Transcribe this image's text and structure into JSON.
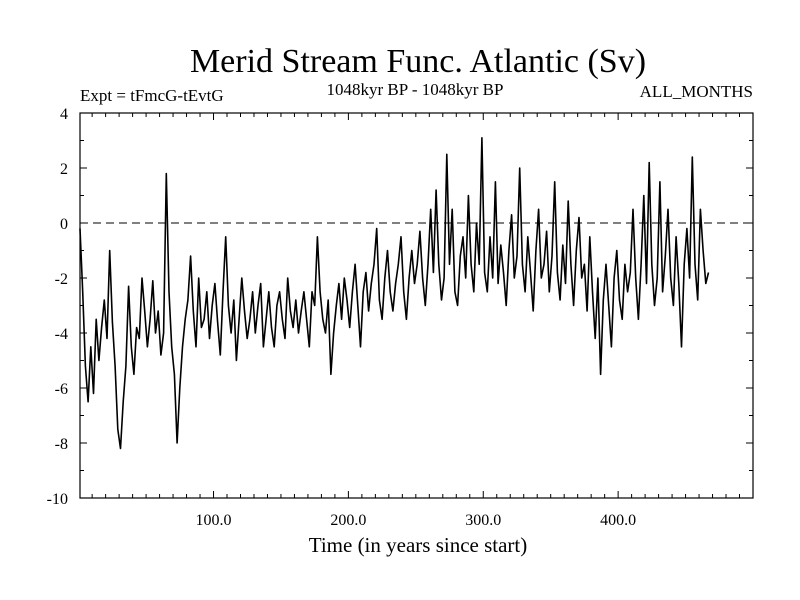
{
  "chart_data": {
    "type": "line",
    "title": "Merid Stream Func. Atlantic (Sv)",
    "subtitle_left": "Expt = tFmcG-tEvtG",
    "subtitle_center": "1048kyr BP - 1048kyr BP",
    "subtitle_right": "ALL_MONTHS",
    "xlabel": "Time (in years since start)",
    "ylabel": "",
    "xlim": [
      1,
      500
    ],
    "ylim": [
      -10,
      4
    ],
    "x_ticks": [
      100,
      200,
      300,
      400
    ],
    "x_tick_labels": [
      "100.0",
      "200.0",
      "300.0",
      "400.0"
    ],
    "y_ticks": [
      -10,
      -8,
      -6,
      -4,
      -2,
      0,
      2,
      4
    ],
    "y_tick_labels": [
      "-10",
      "-8",
      "-6",
      "-4",
      "-2",
      "0",
      "2",
      "4"
    ],
    "reference_line": 0,
    "grid": false,
    "series": [
      {
        "name": "Merid Stream Func. Atlantic",
        "x_start": 1,
        "x_step": 2,
        "values": [
          -0.2,
          -2.5,
          -5.2,
          -6.5,
          -4.5,
          -6.2,
          -3.5,
          -5.0,
          -3.8,
          -2.8,
          -4.2,
          -1.0,
          -3.6,
          -5.2,
          -7.5,
          -8.2,
          -6.5,
          -5.2,
          -2.3,
          -4.5,
          -5.5,
          -3.8,
          -4.2,
          -2.0,
          -3.2,
          -4.5,
          -3.5,
          -2.1,
          -4.0,
          -3.2,
          -4.8,
          -4.0,
          1.8,
          -2.5,
          -4.5,
          -5.5,
          -8.0,
          -6.0,
          -4.5,
          -3.5,
          -2.8,
          -1.2,
          -3.2,
          -4.5,
          -2.0,
          -3.8,
          -3.5,
          -2.5,
          -4.2,
          -3.0,
          -2.2,
          -3.6,
          -4.8,
          -2.5,
          -0.5,
          -3.0,
          -4.0,
          -2.8,
          -5.0,
          -3.5,
          -2.0,
          -3.2,
          -4.2,
          -3.5,
          -2.5,
          -4.0,
          -3.0,
          -2.2,
          -4.5,
          -3.5,
          -2.5,
          -3.8,
          -4.5,
          -3.0,
          -2.5,
          -3.5,
          -4.2,
          -2.0,
          -3.2,
          -3.8,
          -2.8,
          -4.0,
          -3.2,
          -2.5,
          -3.5,
          -4.5,
          -2.5,
          -3.0,
          -0.5,
          -2.5,
          -3.5,
          -4.0,
          -2.8,
          -5.5,
          -4.0,
          -3.0,
          -2.2,
          -3.5,
          -2.0,
          -2.8,
          -3.8,
          -2.5,
          -1.5,
          -3.0,
          -4.5,
          -2.5,
          -1.8,
          -3.2,
          -2.2,
          -1.5,
          -0.2,
          -2.8,
          -3.5,
          -2.0,
          -1.0,
          -2.5,
          -3.2,
          -2.2,
          -1.5,
          -0.5,
          -2.5,
          -3.5,
          -2.0,
          -1.0,
          -2.2,
          -1.5,
          -0.3,
          -2.0,
          -3.0,
          -1.5,
          0.5,
          -1.8,
          1.2,
          -1.5,
          -2.8,
          -2.0,
          2.5,
          -1.5,
          0.5,
          -2.5,
          -3.0,
          -1.2,
          -0.5,
          -2.0,
          1.0,
          -1.5,
          -2.5,
          0.0,
          -1.5,
          3.1,
          -1.8,
          -2.5,
          -0.5,
          -2.0,
          1.5,
          -2.2,
          -0.8,
          -1.8,
          -3.0,
          -1.0,
          0.3,
          -2.0,
          -1.2,
          2.0,
          -1.5,
          -2.5,
          -0.5,
          -1.8,
          -3.2,
          -1.0,
          0.5,
          -2.0,
          -1.5,
          -0.3,
          -2.5,
          -1.2,
          1.5,
          -1.8,
          -2.8,
          -0.8,
          -2.2,
          0.8,
          -1.5,
          -3.0,
          -1.0,
          0.2,
          -2.0,
          -1.5,
          -3.2,
          -0.5,
          -2.5,
          -4.2,
          -2.0,
          -5.5,
          -2.8,
          -1.5,
          -3.0,
          -4.5,
          -2.0,
          -1.0,
          -2.8,
          -3.5,
          -1.5,
          -2.5,
          -1.8,
          0.5,
          -2.0,
          -3.5,
          -1.5,
          1.0,
          -2.2,
          2.2,
          -1.5,
          -3.0,
          -2.0,
          1.5,
          -2.5,
          -1.2,
          0.5,
          -2.0,
          -3.0,
          -0.5,
          -2.2,
          -4.5,
          -1.5,
          -0.2,
          -2.0,
          2.4,
          -1.5,
          -2.8,
          0.5,
          -1.0,
          -2.2,
          -1.8
        ]
      }
    ]
  }
}
